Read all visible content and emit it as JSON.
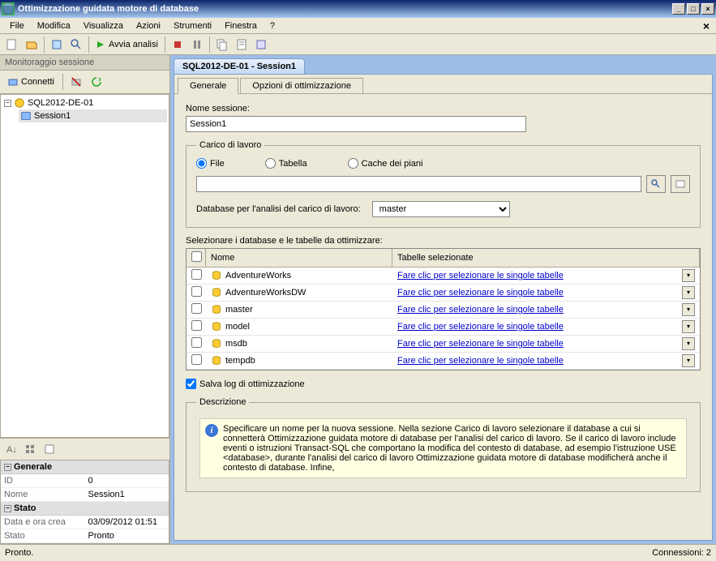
{
  "window": {
    "title": "Ottimizzazione guidata motore di database"
  },
  "menu": {
    "file": "File",
    "edit": "Modifica",
    "view": "Visualizza",
    "actions": "Azioni",
    "tools": "Strumenti",
    "window": "Finestra",
    "help": "?"
  },
  "toolbar": {
    "start": "Avvia analisi"
  },
  "left": {
    "header": "Monitoraggio sessione",
    "connect": "Connetti",
    "server": "SQL2012-DE-01",
    "session": "Session1",
    "generale": "Generale",
    "id_k": "ID",
    "id_v": "0",
    "nome_k": "Nome",
    "nome_v": "Session1",
    "stato": "Stato",
    "date_k": "Data e ora crea",
    "date_v": "03/09/2012 01:51",
    "stato_k": "Stato",
    "stato_v": "Pronto"
  },
  "tab": {
    "title": "SQL2012-DE-01 - Session1",
    "generale": "Generale",
    "opzioni": "Opzioni di ottimizzazione"
  },
  "form": {
    "nome_sessione": "Nome sessione:",
    "nome_value": "Session1",
    "carico": "Carico di lavoro",
    "r_file": "File",
    "r_tabella": "Tabella",
    "r_cache": "Cache dei piani",
    "db_analisi": "Database per l'analisi del carico di lavoro:",
    "master": "master",
    "selezionare": "Selezionare i database e le tabelle da ottimizzare:",
    "col_nome": "Nome",
    "col_tab": "Tabelle selezionate",
    "link": "Fare clic per selezionare le singole tabelle",
    "dbs": [
      "AdventureWorks",
      "AdventureWorksDW",
      "master",
      "model",
      "msdb",
      "tempdb"
    ],
    "salva": "Salva log di ottimizzazione",
    "descrizione": "Descrizione",
    "desc_text": "Specificare un nome per la nuova sessione. Nella sezione Carico di lavoro selezionare il database a cui si connetterà Ottimizzazione guidata motore di database per l'analisi del carico di lavoro. Se il carico di lavoro include eventi o istruzioni Transact-SQL che comportano la modifica del contesto di database, ad esempio l'istruzione USE <database>, durante l'analisi del carico di lavoro Ottimizzazione guidata motore di database modificherà anche il contesto di database. Infine,"
  },
  "status": {
    "ready": "Pronto.",
    "conn": "Connessioni: 2"
  }
}
